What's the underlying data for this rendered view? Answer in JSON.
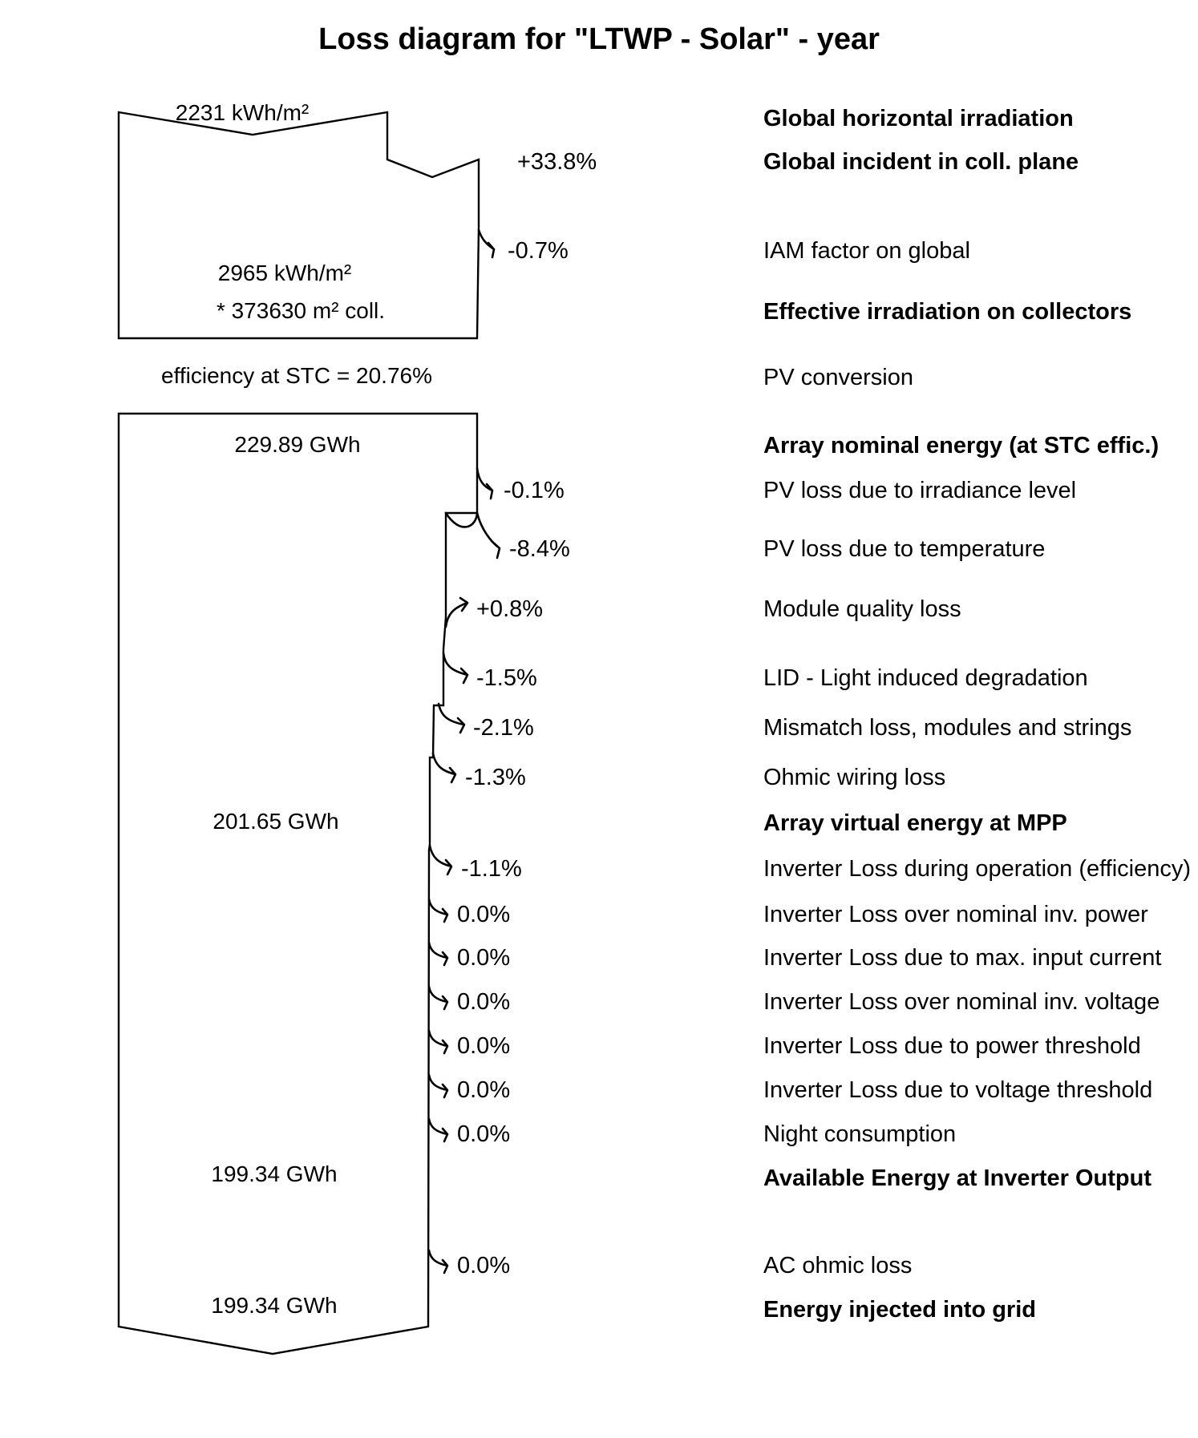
{
  "title": "Loss diagram for \"LTWP - Solar\"  -  year",
  "values": {
    "ghi": "2231 kWh/m²",
    "effective": "2965  kWh/m²",
    "area": "* 373630 m² coll.",
    "efficiency": "efficiency at STC = 20.76%",
    "nominal": "229.89 GWh",
    "mpp": "201.65 GWh",
    "inverter_out": "199.34 GWh",
    "grid": "199.34 GWh"
  },
  "steps": [
    {
      "label": "Global horizontal irradiation",
      "bold": true
    },
    {
      "label": "Global incident in coll. plane",
      "bold": true,
      "pct": "+33.8%"
    },
    {
      "label": "IAM factor on global",
      "bold": false,
      "pct": "-0.7%"
    },
    {
      "label": "Effective irradiation on collectors",
      "bold": true
    },
    {
      "label": "PV conversion",
      "bold": false
    },
    {
      "label": "Array nominal energy (at STC effic.)",
      "bold": true
    },
    {
      "label": "PV loss due to irradiance level",
      "bold": false,
      "pct": "-0.1%"
    },
    {
      "label": "PV loss due to temperature",
      "bold": false,
      "pct": "-8.4%"
    },
    {
      "label": "Module quality loss",
      "bold": false,
      "pct": "+0.8%"
    },
    {
      "label": "LID - Light induced degradation",
      "bold": false,
      "pct": "-1.5%"
    },
    {
      "label": "Mismatch loss, modules and strings",
      "bold": false,
      "pct": "-2.1%"
    },
    {
      "label": "Ohmic wiring loss",
      "bold": false,
      "pct": "-1.3%"
    },
    {
      "label": "Array virtual energy at MPP",
      "bold": true
    },
    {
      "label": "Inverter Loss during operation (efficiency)",
      "bold": false,
      "pct": "-1.1%"
    },
    {
      "label": "Inverter Loss over nominal inv. power",
      "bold": false,
      "pct": "0.0%"
    },
    {
      "label": "Inverter Loss due to max. input current",
      "bold": false,
      "pct": "0.0%"
    },
    {
      "label": "Inverter Loss over nominal inv. voltage",
      "bold": false,
      "pct": "0.0%"
    },
    {
      "label": "Inverter Loss due to power threshold",
      "bold": false,
      "pct": "0.0%"
    },
    {
      "label": "Inverter Loss due to voltage threshold",
      "bold": false,
      "pct": "0.0%"
    },
    {
      "label": "Night consumption",
      "bold": false,
      "pct": "0.0%"
    },
    {
      "label": "Available Energy at Inverter Output",
      "bold": true
    },
    {
      "label": "AC ohmic loss",
      "bold": false,
      "pct": "0.0%"
    },
    {
      "label": "Energy injected into grid",
      "bold": true
    }
  ]
}
